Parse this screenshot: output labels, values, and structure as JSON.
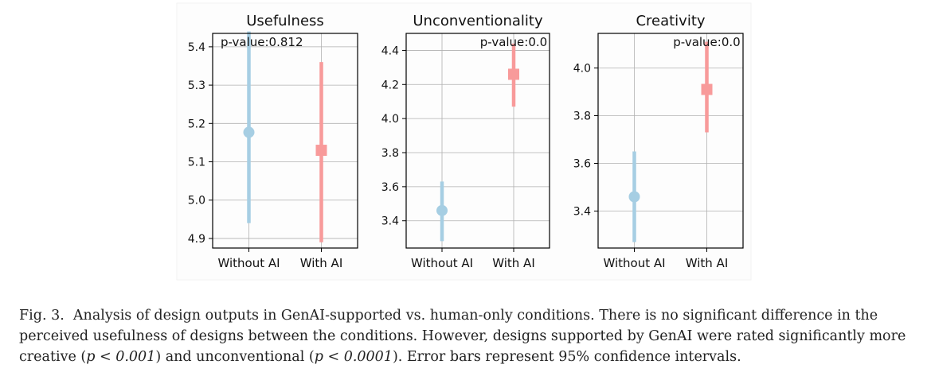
{
  "chart_data": [
    {
      "type": "scatter",
      "title": "Usefulness",
      "categories": [
        "Without AI",
        "With AI"
      ],
      "series": [
        {
          "name": "Without AI",
          "color": "#a6cee3",
          "marker": "circle",
          "mean": 5.177,
          "ci": [
            4.94,
            5.44
          ]
        },
        {
          "name": "With AI",
          "color": "#f89a9a",
          "marker": "square",
          "mean": 5.13,
          "ci": [
            4.89,
            5.36
          ]
        }
      ],
      "annotation": "p-value:0.812",
      "ylim": [
        4.875,
        5.435
      ],
      "yticks": [
        4.9,
        5.0,
        5.1,
        5.2,
        5.3,
        5.4
      ],
      "ytick_labels": [
        "4.9",
        "5.0",
        "5.1",
        "5.2",
        "5.3",
        "5.4"
      ],
      "grid": true
    },
    {
      "type": "scatter",
      "title": "Unconventionality",
      "categories": [
        "Without AI",
        "With AI"
      ],
      "series": [
        {
          "name": "Without AI",
          "color": "#a6cee3",
          "marker": "circle",
          "mean": 3.46,
          "ci": [
            3.28,
            3.63
          ]
        },
        {
          "name": "With AI",
          "color": "#f89a9a",
          "marker": "square",
          "mean": 4.26,
          "ci": [
            4.07,
            4.44
          ]
        }
      ],
      "annotation": "p-value:0.0",
      "ylim": [
        3.24,
        4.5
      ],
      "yticks": [
        3.4,
        3.6,
        3.8,
        4.0,
        4.2,
        4.4
      ],
      "ytick_labels": [
        "3.4",
        "3.6",
        "3.8",
        "4.0",
        "4.2",
        "4.4"
      ],
      "grid": true
    },
    {
      "type": "scatter",
      "title": "Creativity",
      "categories": [
        "Without AI",
        "With AI"
      ],
      "series": [
        {
          "name": "Without AI",
          "color": "#a6cee3",
          "marker": "circle",
          "mean": 3.46,
          "ci": [
            3.27,
            3.65
          ]
        },
        {
          "name": "With AI",
          "color": "#f89a9a",
          "marker": "square",
          "mean": 3.91,
          "ci": [
            3.73,
            4.11
          ]
        }
      ],
      "annotation": "p-value:0.0",
      "ylim": [
        3.245,
        4.145
      ],
      "yticks": [
        3.4,
        3.6,
        3.8,
        4.0
      ],
      "ytick_labels": [
        "3.4",
        "3.6",
        "3.8",
        "4.0"
      ],
      "grid": true
    }
  ],
  "caption": {
    "figure_label": "Fig. 3.",
    "text_1": "Analysis of design outputs in GenAI-supported vs. human-only conditions. There is no significant difference in the perceived usefulness of designs between the conditions. However, designs supported by GenAI were rated significantly more creative (",
    "math_1": "p < 0.001",
    "text_2": ") and unconventional (",
    "math_2": "p < 0.0001",
    "text_3": "). Error bars represent 95% confidence intervals."
  }
}
